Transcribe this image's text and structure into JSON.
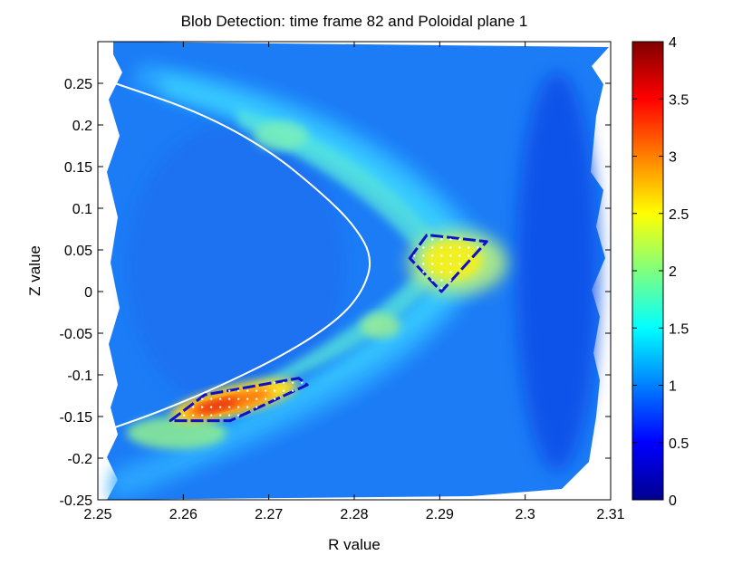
{
  "chart_data": {
    "type": "heatmap",
    "title": "Blob Detection: time frame 82 and Poloidal plane 1",
    "xlabel": "R value",
    "ylabel": "Z value",
    "xlim": [
      2.25,
      2.31
    ],
    "ylim": [
      -0.25,
      0.3
    ],
    "xticks": [
      "2.25",
      "2.26",
      "2.27",
      "2.28",
      "2.29",
      "2.3",
      "2.31"
    ],
    "yticks": [
      "-0.25",
      "-0.2",
      "-0.15",
      "-0.1",
      "-0.05",
      "0",
      "0.05",
      "0.1",
      "0.15",
      "0.2",
      "0.25"
    ],
    "colorbar": {
      "min": 0,
      "max": 4,
      "ticks": [
        "0",
        "0.5",
        "1",
        "1.5",
        "2",
        "2.5",
        "3",
        "3.5",
        "4"
      ],
      "colormap": "jet"
    },
    "separatrix": {
      "color": "#ffffff",
      "points": [
        [
          2.252,
          0.25
        ],
        [
          2.262,
          0.215
        ],
        [
          2.27,
          0.17
        ],
        [
          2.276,
          0.12
        ],
        [
          2.28,
          0.08
        ],
        [
          2.2822,
          0.04
        ],
        [
          2.281,
          0.0
        ],
        [
          2.278,
          -0.035
        ],
        [
          2.272,
          -0.075
        ],
        [
          2.264,
          -0.115
        ],
        [
          2.257,
          -0.145
        ],
        [
          2.252,
          -0.163
        ]
      ]
    },
    "blobs": [
      {
        "color": "#1010c8",
        "peak_value": 3.4,
        "outline": [
          [
            2.2585,
            -0.155
          ],
          [
            2.2625,
            -0.124
          ],
          [
            2.2735,
            -0.104
          ],
          [
            2.2745,
            -0.112
          ],
          [
            2.2655,
            -0.155
          ]
        ]
      },
      {
        "color": "#1010c8",
        "peak_value": 2.4,
        "outline": [
          [
            2.2865,
            0.04
          ],
          [
            2.2885,
            0.068
          ],
          [
            2.2955,
            0.06
          ],
          [
            2.2902,
            0.0
          ]
        ]
      }
    ]
  }
}
